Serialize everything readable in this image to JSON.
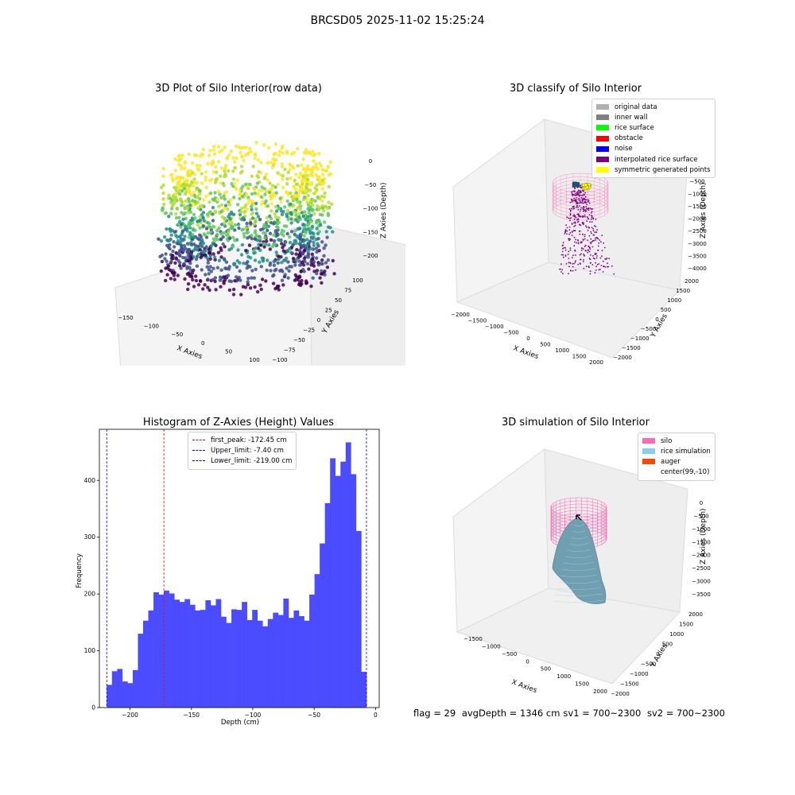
{
  "suptitle": "BRCSD05 2025-11-02 15:25:24",
  "panels": {
    "raw": {
      "title": "3D Plot of Silo Interior(row data)",
      "xlabel": "X Axies",
      "ylabel": "Y Axies",
      "zlabel": "Z Axies (Depth)",
      "xticks": [
        "−150",
        "−100",
        "−50",
        "0",
        "50",
        "100"
      ],
      "yticks": [
        "−100",
        "−75",
        "−50",
        "−25",
        "0",
        "25",
        "50",
        "75",
        "100"
      ],
      "zticks": [
        "0",
        "−50",
        "−100",
        "−150",
        "−200"
      ]
    },
    "classify": {
      "title": "3D classify of Silo Interior",
      "xlabel": "X Axies",
      "ylabel": "Y Axies",
      "zlabel": "Z Axies (Depth)",
      "xticks": [
        "−2000",
        "−1500",
        "−1000",
        "−500",
        "0",
        "500",
        "1000",
        "1500",
        "2000"
      ],
      "yticks": [
        "−2000",
        "−1500",
        "−1000",
        "−500",
        "0",
        "500",
        "1000",
        "1500",
        "2000"
      ],
      "zticks": [
        "0",
        "−500",
        "−1000",
        "−1500",
        "−2000",
        "−2500",
        "−3000",
        "−3500",
        "−4000"
      ],
      "legend": [
        {
          "label": "original data",
          "color": "#b0b0b0"
        },
        {
          "label": "inner wall",
          "color": "#808080"
        },
        {
          "label": "rice surface",
          "color": "#00ff00"
        },
        {
          "label": "obstacle",
          "color": "#ff0000"
        },
        {
          "label": "noise",
          "color": "#0000ff"
        },
        {
          "label": "interpolated rice surface",
          "color": "#800080"
        },
        {
          "label": "symmetric generated points",
          "color": "#ffff00"
        }
      ]
    },
    "simulation": {
      "title": "3D simulation of Silo Interior",
      "xlabel": "X Axies",
      "ylabel": "Y Axies",
      "zlabel": "Z Axies (Depth)",
      "xticks": [
        "−1500",
        "−1000",
        "−500",
        "0",
        "500",
        "1000",
        "1500",
        "2000"
      ],
      "yticks": [
        "−2000",
        "−1500",
        "−1000",
        "−500",
        "0",
        "500",
        "1000",
        "1500",
        "2000"
      ],
      "zticks": [
        "0",
        "−500",
        "−1000",
        "−1500",
        "−2000",
        "−2500",
        "−3000",
        "−3500"
      ],
      "legend": [
        {
          "label": "silo",
          "color": "#ff69b4"
        },
        {
          "label": "rice simulation",
          "color": "#87ceeb"
        },
        {
          "label": "auger",
          "color": "#ff4500"
        },
        {
          "label": "center(99,-10)",
          "color": "#ffffff"
        }
      ]
    }
  },
  "footer": {
    "flag": "flag = 29",
    "avg": "avgDepth = 1346 cm",
    "sv1": "sv1 = 700~2300",
    "sv2": "sv2 = 700~2300"
  },
  "chart_data": [
    {
      "type": "bar",
      "title": "Histogram of Z-Axies (Height) Values",
      "xlabel": "Depth (cm)",
      "ylabel": "Frequency",
      "xlim": [
        -225,
        3
      ],
      "ylim": [
        0,
        490
      ],
      "xticks": [
        -200,
        -150,
        -100,
        -50,
        0
      ],
      "yticks": [
        0,
        100,
        200,
        300,
        400
      ],
      "bar_color": "#4b4bff",
      "bin_start": -219.0,
      "bin_width": 4.232,
      "values": [
        40,
        64,
        68,
        46,
        43,
        66,
        130,
        153,
        171,
        203,
        199,
        206,
        201,
        190,
        186,
        191,
        181,
        171,
        172,
        189,
        180,
        191,
        160,
        149,
        173,
        172,
        186,
        154,
        172,
        153,
        143,
        156,
        167,
        163,
        192,
        158,
        171,
        161,
        153,
        199,
        235,
        289,
        360,
        439,
        408,
        433,
        467,
        411,
        311,
        63
      ],
      "vlines": [
        {
          "x": -172.45,
          "label": "first_peak: -172.45 cm",
          "color": "#ff0000"
        },
        {
          "x": -7.4,
          "label": "Upper_limit: -7.40 cm",
          "color": "#0000cc"
        },
        {
          "x": -219.0,
          "label": "Lower_limit: -219.00 cm",
          "color": "#0000cc"
        }
      ]
    }
  ]
}
